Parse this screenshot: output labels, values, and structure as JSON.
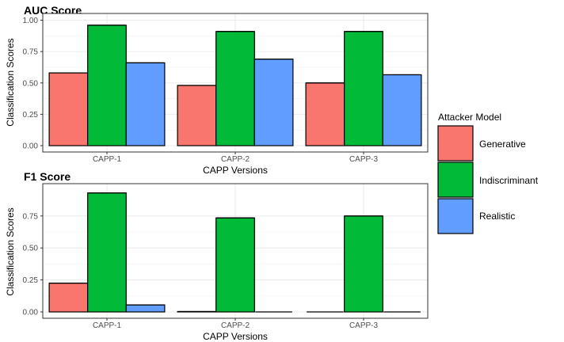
{
  "legend": {
    "title": "Attacker Model",
    "position": "right",
    "items": [
      {
        "label": "Generative",
        "color": "#F8766D"
      },
      {
        "label": "Indiscriminant",
        "color": "#00BA38"
      },
      {
        "label": "Realistic",
        "color": "#619CFF"
      }
    ]
  },
  "chart_data": [
    {
      "type": "bar",
      "title": "AUC Score",
      "xlabel": "CAPP Versions",
      "ylabel": "Classification Scores",
      "categories": [
        "CAPP-1",
        "CAPP-2",
        "CAPP-3"
      ],
      "ylim": [
        0,
        1.0
      ],
      "yticks": [
        0.0,
        0.25,
        0.5,
        0.75,
        1.0
      ],
      "ytick_labels": [
        "0.00",
        "0.25",
        "0.50",
        "0.75",
        "1.00"
      ],
      "grid": true,
      "series": [
        {
          "name": "Generative",
          "values": [
            0.58,
            0.48,
            0.5
          ]
        },
        {
          "name": "Indiscriminant",
          "values": [
            0.96,
            0.91,
            0.91
          ]
        },
        {
          "name": "Realistic",
          "values": [
            0.66,
            0.69,
            0.565
          ]
        }
      ]
    },
    {
      "type": "bar",
      "title": "F1 Score",
      "xlabel": "CAPP Versions",
      "ylabel": "Classification Scores",
      "categories": [
        "CAPP-1",
        "CAPP-2",
        "CAPP-3"
      ],
      "ylim": [
        0,
        0.93
      ],
      "yticks": [
        0.0,
        0.25,
        0.5,
        0.75
      ],
      "ytick_labels": [
        "0.00",
        "0.25",
        "0.50",
        "0.75"
      ],
      "grid": true,
      "series": [
        {
          "name": "Generative",
          "values": [
            0.225,
            0.003,
            0.0
          ]
        },
        {
          "name": "Indiscriminant",
          "values": [
            0.93,
            0.735,
            0.75
          ]
        },
        {
          "name": "Realistic",
          "values": [
            0.055,
            0.0,
            0.0
          ]
        }
      ]
    }
  ]
}
